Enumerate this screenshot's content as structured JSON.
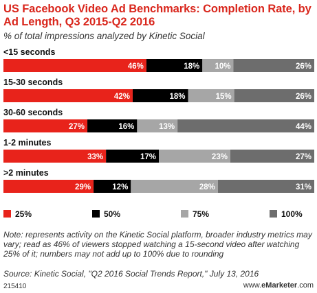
{
  "header": {
    "title": "US Facebook Video Ad Benchmarks: Completion Rate, by Ad Length, Q3 2015-Q2 2016",
    "subtitle": "% of total impressions analyzed by Kinetic Social"
  },
  "chart_data": {
    "type": "bar",
    "orientation": "horizontal",
    "stacked": true,
    "categories": [
      "<15 seconds",
      "15-30 seconds",
      "30-60 seconds",
      "1-2 minutes",
      ">2 minutes"
    ],
    "series": [
      {
        "name": "25%",
        "color": "#e8231b",
        "label_color": "#ffffff",
        "values": [
          46,
          42,
          27,
          33,
          29
        ]
      },
      {
        "name": "50%",
        "color": "#000000",
        "label_color": "#ffffff",
        "values": [
          18,
          18,
          16,
          17,
          12
        ]
      },
      {
        "name": "75%",
        "color": "#a6a6a6",
        "label_color": "#ffffff",
        "values": [
          10,
          15,
          13,
          23,
          28
        ]
      },
      {
        "name": "100%",
        "color": "#6d6d6d",
        "label_color": "#ffffff",
        "values": [
          26,
          26,
          44,
          27,
          31
        ]
      }
    ],
    "value_labels": [
      [
        "46%",
        "42%",
        "27%",
        "33%",
        "29%"
      ],
      [
        "18%",
        "18%",
        "16%",
        "17%",
        "12%"
      ],
      [
        "10%",
        "15%",
        "13%",
        "23%",
        "28%"
      ],
      [
        "26%",
        "26%",
        "44%",
        "27%",
        "31%"
      ]
    ],
    "legend_position": "bottom"
  },
  "notes": {
    "note": "Note: represents activity on the Kinetic Social platform, broader industry metrics may vary; read as 46% of viewers stopped watching a 15-second video after watching 25% of it; numbers may not add up to 100% due to rounding",
    "source": "Source: Kinetic Social, \"Q2 2016 Social Trends Report,\" July 13, 2016"
  },
  "footer": {
    "chart_id": "215410",
    "brand_prefix": "www.",
    "brand_e": "e",
    "brand_name": "Marketer",
    "brand_suffix": ".com"
  }
}
